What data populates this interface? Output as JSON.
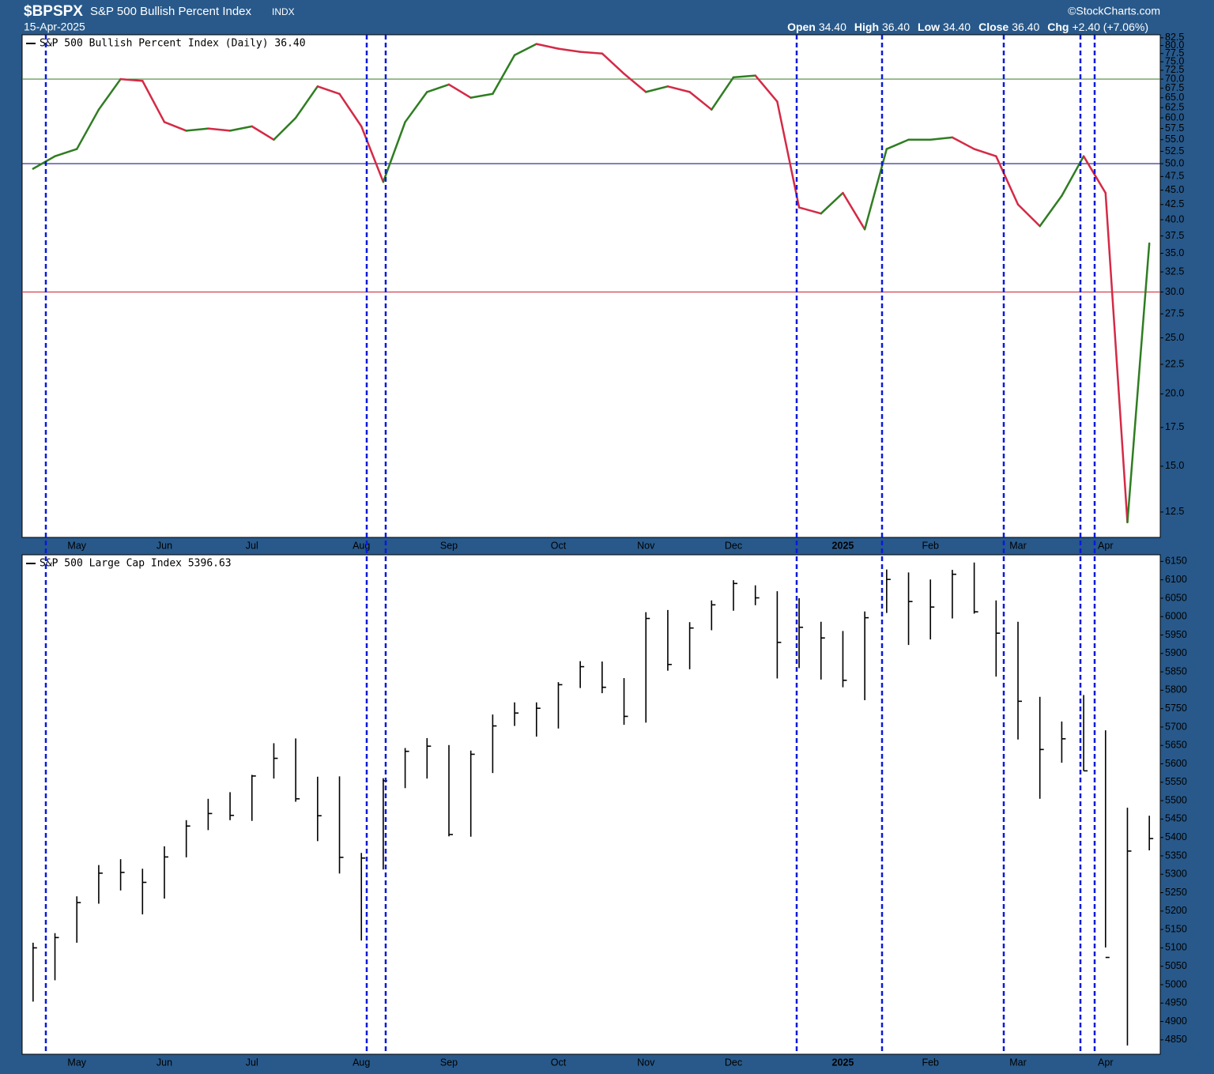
{
  "chart_data": [
    {
      "type": "line",
      "title": "$BPSPX",
      "subtitle": "S&P 500 Bullish Percent Index",
      "exchange": "INDX",
      "date": "15-Apr-2025",
      "source": "©StockCharts.com",
      "quote": [
        [
          "Open",
          "34.40"
        ],
        [
          "High",
          "36.40"
        ],
        [
          "Low",
          "34.40"
        ],
        [
          "Close",
          "36.40"
        ],
        [
          "Chg",
          "+2.40 (+7.06%)"
        ]
      ],
      "categories": [
        null,
        null,
        "May",
        null,
        null,
        null,
        "Jun",
        null,
        null,
        null,
        "Jul",
        null,
        null,
        null,
        null,
        "Aug",
        null,
        null,
        null,
        "Sep",
        null,
        null,
        null,
        null,
        "Oct",
        null,
        null,
        null,
        "Nov",
        null,
        null,
        null,
        "Dec",
        null,
        null,
        null,
        null,
        "2025",
        null,
        null,
        null,
        "Feb",
        null,
        null,
        null,
        "Mar",
        null,
        null,
        null,
        "Apr",
        null,
        null
      ],
      "series": [
        {
          "name": "S&P 500 Bullish Percent Index (Daily) 36.40",
          "up_color": "#2f7d22",
          "down_color": "#d42a46",
          "values": [
            49,
            51.5,
            53,
            62,
            70,
            69.5,
            59,
            57,
            57.5,
            57,
            58,
            55,
            60,
            68,
            66,
            58,
            46.5,
            59,
            66.5,
            68.5,
            65,
            66,
            77,
            80.5,
            79,
            78,
            77.5,
            71.5,
            66.5,
            68,
            66.5,
            62,
            70.5,
            71,
            64,
            42,
            41,
            44.5,
            38.5,
            53,
            55,
            55,
            55.5,
            53,
            51.5,
            42.5,
            39,
            44,
            51.5,
            44.5,
            12,
            36.4
          ]
        }
      ],
      "log_scale": true,
      "reference_lines": [
        {
          "value": 70,
          "color": "#4a8a3a"
        },
        {
          "value": 50,
          "color": "#1c1c8c"
        },
        {
          "value": 30,
          "color": "#d04050"
        }
      ],
      "ylim": [
        11.3,
        83.5
      ],
      "yticks": [
        {
          "value": 82.5,
          "label": "82.5"
        },
        {
          "value": 80,
          "label": "80.0"
        },
        {
          "value": 77.5,
          "label": "77.5"
        },
        {
          "value": 75,
          "label": "75.0"
        },
        {
          "value": 72.5,
          "label": "72.5"
        },
        {
          "value": 70,
          "label": "70.0"
        },
        {
          "value": 67.5,
          "label": "67.5"
        },
        {
          "value": 65,
          "label": "65.0"
        },
        {
          "value": 62.5,
          "label": "62.5"
        },
        {
          "value": 60,
          "label": "60.0"
        },
        {
          "value": 57.5,
          "label": "57.5"
        },
        {
          "value": 55,
          "label": "55.0"
        },
        {
          "value": 52.5,
          "label": "52.5"
        },
        {
          "value": 50,
          "label": "50.0"
        },
        {
          "value": 47.5,
          "label": "47.5"
        },
        {
          "value": 45,
          "label": "45.0"
        },
        {
          "value": 42.5,
          "label": "42.5"
        },
        {
          "value": 40,
          "label": "40.0"
        },
        {
          "value": 37.5,
          "label": "37.5"
        },
        {
          "value": 35,
          "label": "35.0"
        },
        {
          "value": 32.5,
          "label": "32.5"
        },
        {
          "value": 30,
          "label": "30.0"
        },
        {
          "value": 27.5,
          "label": "27.5"
        },
        {
          "value": 25,
          "label": "25.0"
        },
        {
          "value": 22.5,
          "label": "22.5"
        },
        {
          "value": 20,
          "label": "20.0"
        },
        {
          "value": 17.5,
          "label": "17.5"
        },
        {
          "value": 15,
          "label": "15.0"
        },
        {
          "value": 12.5,
          "label": "12.5"
        }
      ]
    },
    {
      "type": "ohlc",
      "categories": [
        null,
        null,
        "May",
        null,
        null,
        null,
        "Jun",
        null,
        null,
        null,
        "Jul",
        null,
        null,
        null,
        null,
        "Aug",
        null,
        null,
        null,
        "Sep",
        null,
        null,
        null,
        null,
        "Oct",
        null,
        null,
        null,
        "Nov",
        null,
        null,
        null,
        "Dec",
        null,
        null,
        null,
        null,
        "2025",
        null,
        null,
        null,
        "Feb",
        null,
        null,
        null,
        "Mar",
        null,
        null,
        null,
        "Apr",
        null,
        null
      ],
      "series": [
        {
          "name": "S&P 500 Large Cap Index 5396.63",
          "color": "#000000",
          "high": [
            5114,
            5140,
            5240,
            5325,
            5341,
            5315,
            5376,
            5447,
            5505,
            5523,
            5570,
            5656,
            5669,
            5565,
            5566,
            5358,
            5561,
            5643,
            5670,
            5651,
            5636,
            5734,
            5767,
            5767,
            5822,
            5879,
            5878,
            5833,
            6012,
            6018,
            5985,
            6044,
            6099,
            6085,
            6069,
            6050,
            5986,
            5961,
            6014,
            6128,
            6120,
            6101,
            6127,
            6147,
            6044,
            5986,
            5782,
            5715,
            5787,
            5691,
            5481,
            5459
          ],
          "low": [
            4954,
            5012,
            5114,
            5220,
            5256,
            5191,
            5234,
            5346,
            5420,
            5447,
            5445,
            5560,
            5497,
            5390,
            5302,
            5120,
            5313,
            5534,
            5560,
            5403,
            5402,
            5575,
            5703,
            5674,
            5696,
            5806,
            5792,
            5706,
            5712,
            5853,
            5857,
            5963,
            6016,
            6031,
            5832,
            5860,
            5829,
            5808,
            5773,
            6010,
            5923,
            5938,
            5995,
            6008,
            5837,
            5666,
            5505,
            5603,
            5581,
            5101,
            4835,
            5365
          ],
          "close": [
            5100,
            5128,
            5223,
            5303,
            5305,
            5278,
            5347,
            5431,
            5465,
            5460,
            5567,
            5615,
            5505,
            5459,
            5346,
            5344,
            5554,
            5634,
            5648,
            5408,
            5626,
            5703,
            5738,
            5751,
            5815,
            5864,
            5808,
            5729,
            5995,
            5870,
            5969,
            6032,
            6090,
            6051,
            5930,
            5971,
            5942,
            5827,
            5997,
            6101,
            6041,
            6026,
            6115,
            6013,
            5955,
            5770,
            5639,
            5668,
            5581,
            5074,
            5363,
            5397
          ]
        }
      ],
      "ylim": [
        4811,
        6168
      ],
      "yticks": [
        4850,
        4900,
        4950,
        5000,
        5050,
        5100,
        5150,
        5200,
        5250,
        5300,
        5350,
        5400,
        5450,
        5500,
        5550,
        5600,
        5650,
        5700,
        5750,
        5800,
        5850,
        5900,
        5950,
        6000,
        6050,
        6100,
        6150
      ]
    }
  ]
}
